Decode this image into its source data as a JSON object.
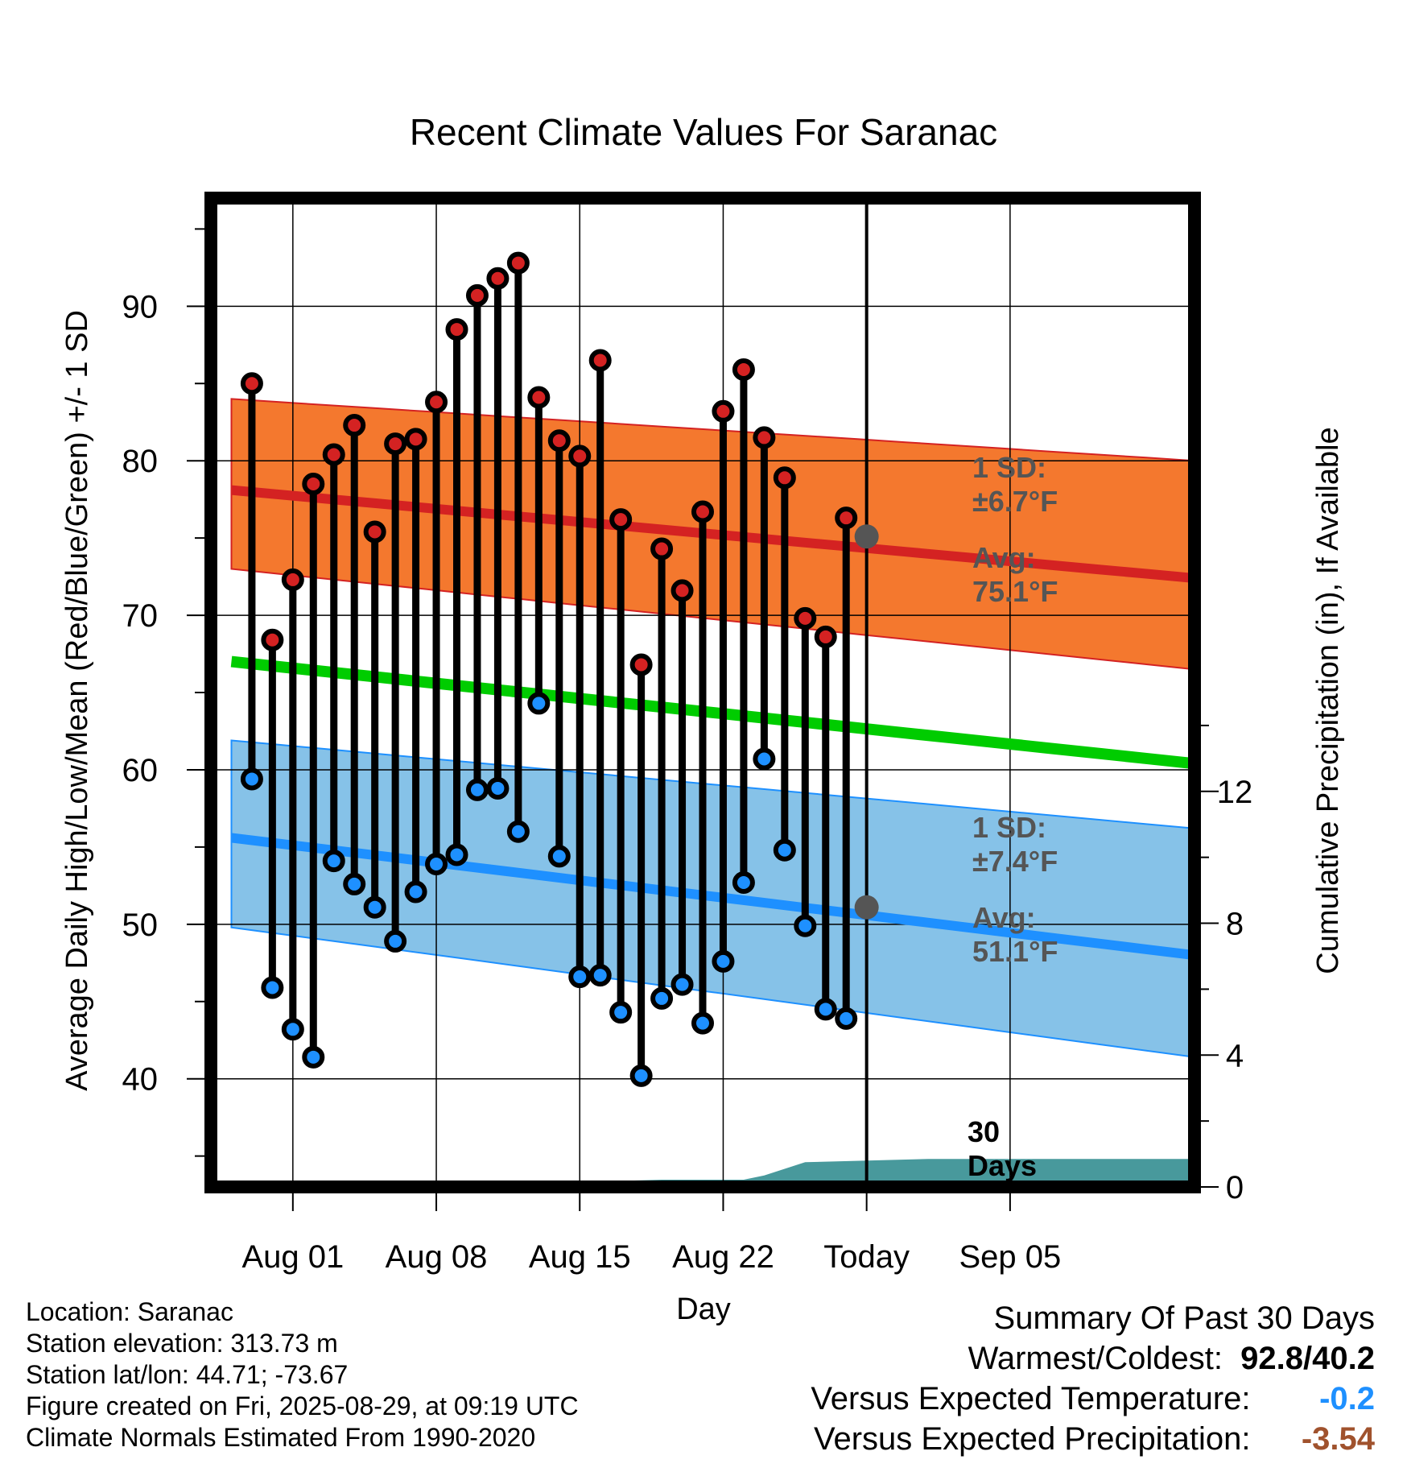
{
  "chart_data": {
    "type": "line",
    "title": "Recent Climate Values For Saranac",
    "xlabel": "Day",
    "ylabel": "Average Daily High/Low/Mean (Red/Blue/Green) +/- 1 SD",
    "y2label": "Cumulative Precipitation (in), If Available",
    "x_range_days": [
      -4,
      44
    ],
    "x_ticks": [
      {
        "day": 0,
        "label": "Aug 01"
      },
      {
        "day": 7,
        "label": "Aug 08"
      },
      {
        "day": 14,
        "label": "Aug 15"
      },
      {
        "day": 21,
        "label": "Aug 22"
      },
      {
        "day": 28,
        "label": "Today"
      },
      {
        "day": 35,
        "label": "Sep 05"
      }
    ],
    "ylim": [
      33,
      97
    ],
    "y_ticks": [
      40,
      50,
      60,
      70,
      80,
      90
    ],
    "y2lim": [
      0,
      30
    ],
    "y2_ticks": [
      0,
      4,
      8,
      12
    ],
    "grid": true,
    "colors": {
      "high": "#d42222",
      "low": "#1e90ff",
      "mean": "#00cc00",
      "high_band": "#f4782e",
      "low_band": "#86c2e8",
      "precip": "#48999c",
      "marker_high": "#d42222",
      "marker_low": "#1e90ff"
    },
    "normal_high": {
      "x": [
        -3,
        44
      ],
      "avg": [
        78.1,
        72.4
      ],
      "sd_upper": [
        84.0,
        80.0
      ],
      "sd_lower": [
        73.0,
        66.5
      ]
    },
    "normal_low": {
      "x": [
        -3,
        44
      ],
      "avg": [
        55.6,
        48.0
      ],
      "sd_upper": [
        61.9,
        56.2
      ],
      "sd_lower": [
        49.8,
        41.4
      ]
    },
    "normal_mean": {
      "x": [
        -3,
        44
      ],
      "values": [
        67.0,
        60.4
      ]
    },
    "daily": {
      "day": [
        -2,
        -1,
        0,
        1,
        2,
        3,
        4,
        5,
        6,
        7,
        8,
        9,
        10,
        11,
        12,
        13,
        14,
        15,
        16,
        17,
        18,
        19,
        20,
        21,
        22,
        23,
        24,
        25,
        26,
        27
      ],
      "high": [
        85.0,
        68.4,
        72.3,
        78.5,
        80.4,
        82.3,
        75.4,
        81.1,
        81.4,
        83.8,
        88.5,
        90.7,
        91.8,
        92.8,
        84.1,
        81.3,
        80.3,
        86.5,
        76.2,
        66.8,
        74.3,
        71.6,
        76.7,
        83.2,
        85.9,
        81.5,
        78.9,
        69.8,
        68.6,
        76.3
      ],
      "low": [
        59.4,
        45.9,
        43.2,
        41.4,
        54.1,
        52.6,
        51.1,
        48.9,
        52.1,
        53.9,
        54.5,
        58.7,
        58.8,
        56.0,
        64.3,
        54.4,
        46.6,
        46.7,
        44.3,
        40.2,
        45.2,
        46.1,
        43.6,
        47.6,
        52.7,
        60.7,
        54.8,
        49.9,
        44.5,
        43.9
      ]
    },
    "precip_cumulative": {
      "day": [
        13,
        14,
        18,
        22,
        23,
        25,
        31,
        44
      ],
      "values": [
        0,
        0.15,
        0.22,
        0.22,
        0.35,
        0.75,
        0.85,
        0.85
      ]
    },
    "today_marker": {
      "day": 28,
      "label_lines": [
        "30",
        "Days"
      ]
    },
    "annotations": {
      "high": {
        "sd_lines": [
          "1 SD:",
          "±6.7°F"
        ],
        "avg_lines": [
          "Avg:",
          "75.1°F"
        ],
        "avg_value": 75.1
      },
      "low": {
        "sd_lines": [
          "1 SD:",
          "±7.4°F"
        ],
        "avg_lines": [
          "Avg:",
          "51.1°F"
        ],
        "avg_value": 51.1
      }
    }
  },
  "footer": {
    "location": "Location: Saranac",
    "elevation": "Station elevation: 313.73 m",
    "latlon": "Station lat/lon: 44.71; -73.67",
    "created": "Figure created on Fri, 2025-08-29, at 09:19 UTC",
    "normals": "Climate Normals Estimated From 1990-2020"
  },
  "summary": {
    "title": "Summary Of Past 30 Days",
    "warmest_label": "Warmest/Coldest:",
    "warmest_value": "92.8/40.2",
    "temp_label": "Versus Expected Temperature:",
    "temp_value": "-0.2",
    "temp_color": "#1e90ff",
    "precip_label": "Versus Expected Precipitation:",
    "precip_value": "-3.54",
    "precip_color": "#a0522d"
  }
}
